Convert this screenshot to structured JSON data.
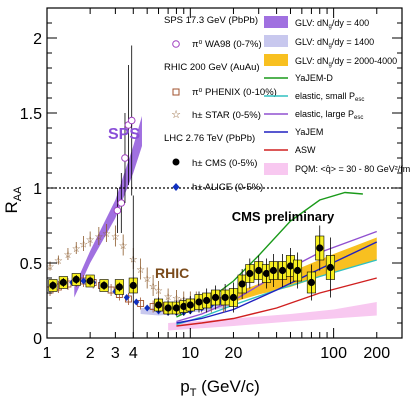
{
  "chart_data": {
    "type": "scatter",
    "xscale": "log",
    "xlim": [
      1,
      300
    ],
    "ylim": [
      0,
      2.2
    ],
    "xlabel_main": "p",
    "xlabel_sub": "T",
    "xlabel_unit": " (GeV/c)",
    "ylabel_main": "R",
    "ylabel_sub": "AA",
    "x_ticks": [
      {
        "v": 1,
        "label": "1"
      },
      {
        "v": 2,
        "label": "2"
      },
      {
        "v": 3,
        "label": "3"
      },
      {
        "v": 4,
        "label": "4"
      },
      {
        "v": 10,
        "label": "10"
      },
      {
        "v": 20,
        "label": "20"
      },
      {
        "v": 100,
        "label": "100"
      },
      {
        "v": 200,
        "label": "200"
      }
    ],
    "y_ticks": [
      {
        "v": 0,
        "label": "0"
      },
      {
        "v": 0.5,
        "label": "0.5"
      },
      {
        "v": 1,
        "label": "1"
      },
      {
        "v": 1.5,
        "label": "1.5"
      },
      {
        "v": 2,
        "label": "2"
      }
    ],
    "reference_line": 1,
    "annotations": {
      "sps": "SPS",
      "rhic": "RHIC",
      "cms_prelim": "CMS preliminary"
    },
    "legend_left": {
      "header_sps": "SPS 17.3 GeV (PbPb)",
      "wa98": "π⁰  WA98 (0-7%)",
      "header_rhic": "RHIC 200 GeV (AuAu)",
      "phenix": "π⁰  PHENIX (0-10%)",
      "star": "h±  STAR (0-5%)",
      "header_lhc": "LHC 2.76 TeV (PbPb)",
      "cms": "h±  CMS (0-5%)",
      "alice": "h±  ALICE (0-5%)"
    },
    "legend_right": [
      {
        "label": "GLV: dN_g/dy = 400",
        "kind": "band",
        "color": "#a070e0"
      },
      {
        "label": "GLV: dN_g/dy = 1400",
        "kind": "band",
        "color": "#c8c8ee"
      },
      {
        "label": "GLV: dN_g/dy = 2000-4000",
        "kind": "band",
        "color": "#f8c020"
      },
      {
        "label": "YaJEM-D",
        "kind": "line",
        "color": "#1a9a1a"
      },
      {
        "label": "elastic, small P_esc",
        "kind": "line",
        "color": "#30c0c0"
      },
      {
        "label": "elastic, large P_esc",
        "kind": "line",
        "color": "#9050d0"
      },
      {
        "label": "YaJEM",
        "kind": "line",
        "color": "#2020c0"
      },
      {
        "label": "ASW",
        "kind": "line",
        "color": "#d02020"
      },
      {
        "label": "PQM: <q̂> = 30 - 80 GeV²/fm",
        "kind": "band",
        "color": "#f8c8f0"
      }
    ],
    "bands": {
      "glv400": {
        "color": "#a070e0",
        "lower": [
          [
            1.55,
            0.27
          ],
          [
            2.0,
            0.5
          ],
          [
            3.0,
            0.8
          ],
          [
            4.0,
            1.1
          ],
          [
            4.6,
            1.28
          ]
        ],
        "upper": [
          [
            1.55,
            0.34
          ],
          [
            2.0,
            0.58
          ],
          [
            3.0,
            0.92
          ],
          [
            4.0,
            1.28
          ],
          [
            4.6,
            1.48
          ]
        ]
      },
      "glv1400": {
        "color": "#c8c8ee",
        "lower": [
          [
            4.5,
            0.16
          ],
          [
            6,
            0.15
          ],
          [
            8,
            0.16
          ],
          [
            10,
            0.17
          ],
          [
            15,
            0.19
          ],
          [
            20,
            0.21
          ]
        ],
        "upper": [
          [
            4.5,
            0.2
          ],
          [
            6,
            0.2
          ],
          [
            8,
            0.22
          ],
          [
            10,
            0.24
          ],
          [
            15,
            0.27
          ],
          [
            20,
            0.29
          ]
        ]
      },
      "glv2000": {
        "color": "#f8c020",
        "lower": [
          [
            20,
            0.24
          ],
          [
            30,
            0.29
          ],
          [
            50,
            0.34
          ],
          [
            100,
            0.44
          ],
          [
            200,
            0.52
          ]
        ],
        "upper": [
          [
            20,
            0.3
          ],
          [
            30,
            0.36
          ],
          [
            50,
            0.44
          ],
          [
            100,
            0.56
          ],
          [
            200,
            0.67
          ]
        ]
      },
      "pqm": {
        "color": "#f8c8f0",
        "lower": [
          [
            7,
            0.05
          ],
          [
            10,
            0.06
          ],
          [
            20,
            0.08
          ],
          [
            50,
            0.11
          ],
          [
            100,
            0.13
          ],
          [
            200,
            0.15
          ]
        ],
        "upper": [
          [
            7,
            0.1
          ],
          [
            10,
            0.11
          ],
          [
            20,
            0.13
          ],
          [
            50,
            0.16
          ],
          [
            100,
            0.19
          ],
          [
            200,
            0.24
          ]
        ]
      }
    },
    "curves": {
      "yajem_d": {
        "color": "#1a9a1a",
        "points": [
          [
            8,
            0.14
          ],
          [
            12,
            0.22
          ],
          [
            20,
            0.38
          ],
          [
            30,
            0.55
          ],
          [
            50,
            0.78
          ],
          [
            80,
            0.92
          ],
          [
            120,
            0.97
          ],
          [
            160,
            0.96
          ]
        ]
      },
      "elastic_small": {
        "color": "#30c0c0",
        "points": [
          [
            8,
            0.09
          ],
          [
            12,
            0.14
          ],
          [
            20,
            0.22
          ],
          [
            40,
            0.32
          ],
          [
            80,
            0.41
          ],
          [
            200,
            0.52
          ]
        ]
      },
      "elastic_large": {
        "color": "#9050d0",
        "points": [
          [
            8,
            0.11
          ],
          [
            12,
            0.16
          ],
          [
            20,
            0.25
          ],
          [
            40,
            0.42
          ],
          [
            80,
            0.57
          ],
          [
            200,
            0.71
          ]
        ]
      },
      "yajem": {
        "color": "#2020c0",
        "points": [
          [
            8,
            0.1
          ],
          [
            12,
            0.13
          ],
          [
            20,
            0.19
          ],
          [
            40,
            0.32
          ],
          [
            80,
            0.46
          ],
          [
            200,
            0.64
          ]
        ]
      },
      "asw": {
        "color": "#d02020",
        "points": [
          [
            8,
            0.08
          ],
          [
            12,
            0.1
          ],
          [
            20,
            0.13
          ],
          [
            40,
            0.2
          ],
          [
            80,
            0.3
          ],
          [
            200,
            0.4
          ]
        ]
      }
    },
    "wa98": {
      "color": "#a040c0",
      "points": [
        [
          3.1,
          0.85,
          0.15
        ],
        [
          3.3,
          0.9,
          0.2
        ],
        [
          3.5,
          1.2,
          0.3
        ],
        [
          3.7,
          1.42,
          0.4
        ],
        [
          3.9,
          1.45,
          0.5
        ]
      ]
    },
    "phenix": {
      "color": "#a0522d",
      "points": [
        [
          1.05,
          0.32,
          0.04
        ],
        [
          1.2,
          0.34,
          0.04
        ],
        [
          1.4,
          0.36,
          0.04
        ],
        [
          1.6,
          0.38,
          0.04
        ],
        [
          1.8,
          0.38,
          0.04
        ],
        [
          2.1,
          0.37,
          0.04
        ],
        [
          2.4,
          0.35,
          0.04
        ],
        [
          2.8,
          0.32,
          0.04
        ],
        [
          3.2,
          0.29,
          0.04
        ],
        [
          3.7,
          0.26,
          0.04
        ],
        [
          4.5,
          0.23,
          0.04
        ],
        [
          5.5,
          0.21,
          0.04
        ],
        [
          6.5,
          0.2,
          0.04
        ],
        [
          7.5,
          0.2,
          0.04
        ],
        [
          8.5,
          0.21,
          0.05
        ],
        [
          10,
          0.21,
          0.05
        ],
        [
          12,
          0.23,
          0.06
        ],
        [
          14,
          0.24,
          0.07
        ],
        [
          17,
          0.25,
          0.08
        ]
      ]
    },
    "star": {
      "color": "#8b5a2b",
      "points": [
        [
          1.05,
          0.48,
          0.03
        ],
        [
          1.2,
          0.52,
          0.03
        ],
        [
          1.4,
          0.56,
          0.04
        ],
        [
          1.6,
          0.6,
          0.04
        ],
        [
          1.8,
          0.63,
          0.05
        ],
        [
          2.0,
          0.66,
          0.05
        ],
        [
          2.3,
          0.68,
          0.06
        ],
        [
          2.6,
          0.7,
          0.06
        ],
        [
          3.0,
          0.68,
          0.07
        ],
        [
          3.4,
          0.62,
          0.07
        ],
        [
          4.0,
          0.53,
          0.07
        ],
        [
          4.5,
          0.46,
          0.07
        ],
        [
          5.0,
          0.4,
          0.07
        ],
        [
          5.5,
          0.35,
          0.07
        ],
        [
          6.0,
          0.32,
          0.06
        ],
        [
          7.0,
          0.28,
          0.05
        ],
        [
          8.0,
          0.27,
          0.05
        ],
        [
          9.0,
          0.26,
          0.05
        ],
        [
          10,
          0.26,
          0.05
        ],
        [
          11,
          0.26,
          0.05
        ]
      ]
    },
    "alice": {
      "color": "#1030c0",
      "points": [
        [
          1.1,
          0.33,
          0.02
        ],
        [
          1.3,
          0.35,
          0.02
        ],
        [
          1.5,
          0.37,
          0.02
        ],
        [
          1.8,
          0.38,
          0.02
        ],
        [
          2.1,
          0.37,
          0.02
        ],
        [
          2.5,
          0.35,
          0.02
        ],
        [
          3.0,
          0.31,
          0.02
        ],
        [
          3.6,
          0.27,
          0.02
        ],
        [
          4.2,
          0.24,
          0.02
        ],
        [
          5.0,
          0.2,
          0.02
        ],
        [
          6.0,
          0.18,
          0.02
        ],
        [
          7.0,
          0.17,
          0.02
        ],
        [
          8.0,
          0.17,
          0.02
        ],
        [
          9.0,
          0.17,
          0.02
        ],
        [
          10,
          0.18,
          0.02
        ],
        [
          12,
          0.2,
          0.03
        ],
        [
          14,
          0.22,
          0.03
        ],
        [
          16,
          0.24,
          0.03
        ],
        [
          18,
          0.26,
          0.03
        ]
      ]
    },
    "cms": {
      "color": "#000000",
      "box_color": "#f8f020",
      "points": [
        [
          1.1,
          0.35,
          0.03,
          0.04
        ],
        [
          1.3,
          0.37,
          0.03,
          0.04
        ],
        [
          1.6,
          0.39,
          0.03,
          0.04
        ],
        [
          2.0,
          0.38,
          0.03,
          0.04
        ],
        [
          2.5,
          0.35,
          0.03,
          0.04
        ],
        [
          3.2,
          0.34,
          0.03,
          0.05
        ],
        [
          4.0,
          0.35,
          0.6,
          0.05
        ],
        [
          6.0,
          0.22,
          0.05,
          0.04
        ],
        [
          7.0,
          0.2,
          0.05,
          0.04
        ],
        [
          8.0,
          0.2,
          0.05,
          0.04
        ],
        [
          9.0,
          0.21,
          0.06,
          0.04
        ],
        [
          10,
          0.22,
          0.06,
          0.04
        ],
        [
          11.5,
          0.24,
          0.07,
          0.05
        ],
        [
          13,
          0.25,
          0.08,
          0.05
        ],
        [
          15,
          0.27,
          0.08,
          0.05
        ],
        [
          17.5,
          0.27,
          0.09,
          0.05
        ],
        [
          20,
          0.27,
          0.1,
          0.06
        ],
        [
          23,
          0.36,
          0.1,
          0.06
        ],
        [
          26,
          0.43,
          0.1,
          0.06
        ],
        [
          30,
          0.45,
          0.1,
          0.06
        ],
        [
          34,
          0.43,
          0.1,
          0.06
        ],
        [
          38,
          0.45,
          0.11,
          0.06
        ],
        [
          44,
          0.45,
          0.11,
          0.06
        ],
        [
          50,
          0.48,
          0.12,
          0.07
        ],
        [
          56,
          0.45,
          0.12,
          0.07
        ],
        [
          70,
          0.37,
          0.12,
          0.07
        ],
        [
          80,
          0.6,
          0.15,
          0.08
        ],
        [
          95,
          0.47,
          0.2,
          0.08
        ]
      ]
    }
  }
}
